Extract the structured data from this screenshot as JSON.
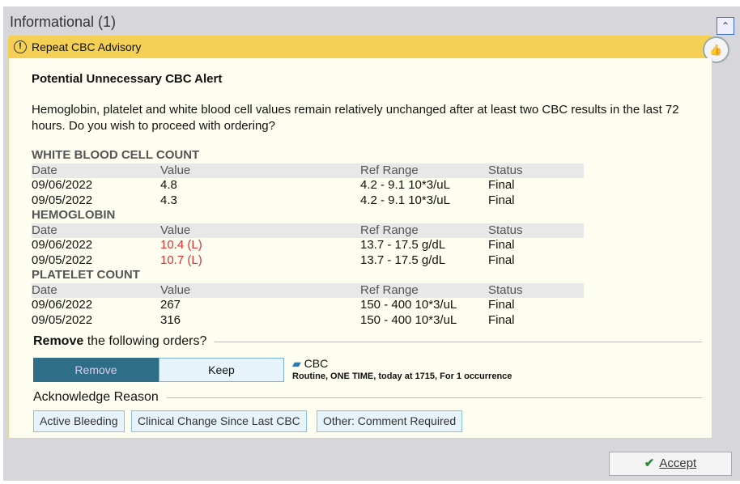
{
  "header": {
    "title": "Informational (1)",
    "collapse_icon": "double-chevron-up"
  },
  "advisory": {
    "title": "Repeat CBC Advisory",
    "icon": "exclamation-circle",
    "feedback_icon": "thumbs-up-down"
  },
  "alert": {
    "title": "Potential Unnecessary CBC Alert",
    "message": "Hemoglobin, platelet and white blood cell values remain relatively unchanged after at least two CBC results in the last 72 hours. Do you wish to proceed with ordering?"
  },
  "columns": [
    "Date",
    "Value",
    "Ref Range",
    "Status"
  ],
  "sections": [
    {
      "name": "WHITE BLOOD CELL COUNT",
      "rows": [
        [
          "09/06/2022",
          "4.8",
          "4.2 - 9.1 10*3/uL",
          "Final"
        ],
        [
          "09/05/2022",
          "4.3",
          "4.2 - 9.1 10*3/uL",
          "Final"
        ]
      ]
    },
    {
      "name": "HEMOGLOBIN",
      "rows": [
        [
          "09/06/2022",
          "10.4 (L)",
          "13.7 - 17.5 g/dL",
          "Final"
        ],
        [
          "09/05/2022",
          "10.7 (L)",
          "13.7 - 17.5 g/dL",
          "Final"
        ]
      ]
    },
    {
      "name": "PLATELET COUNT",
      "rows": [
        [
          "09/06/2022",
          "267",
          "150 - 400 10*3/uL",
          "Final"
        ],
        [
          "09/05/2022",
          "316",
          "150 - 400 10*3/uL",
          "Final"
        ]
      ]
    }
  ],
  "remove": {
    "bold": "Remove",
    "rest": " the following orders?",
    "remove_label": "Remove",
    "keep_label": "Keep",
    "selected": "Remove"
  },
  "order": {
    "name": "CBC",
    "detail": "Routine, ONE TIME, today at 1715, For 1 occurrence"
  },
  "acknowledge": {
    "title": "Acknowledge Reason",
    "reasons": [
      "Active Bleeding",
      "Clinical Change Since Last CBC",
      "Other: Comment Required"
    ]
  },
  "accept_label": "Accept",
  "colors": {
    "advisory_bar": "#f4d055",
    "abnormal": "#e03030",
    "selected": "#2e6e87"
  }
}
